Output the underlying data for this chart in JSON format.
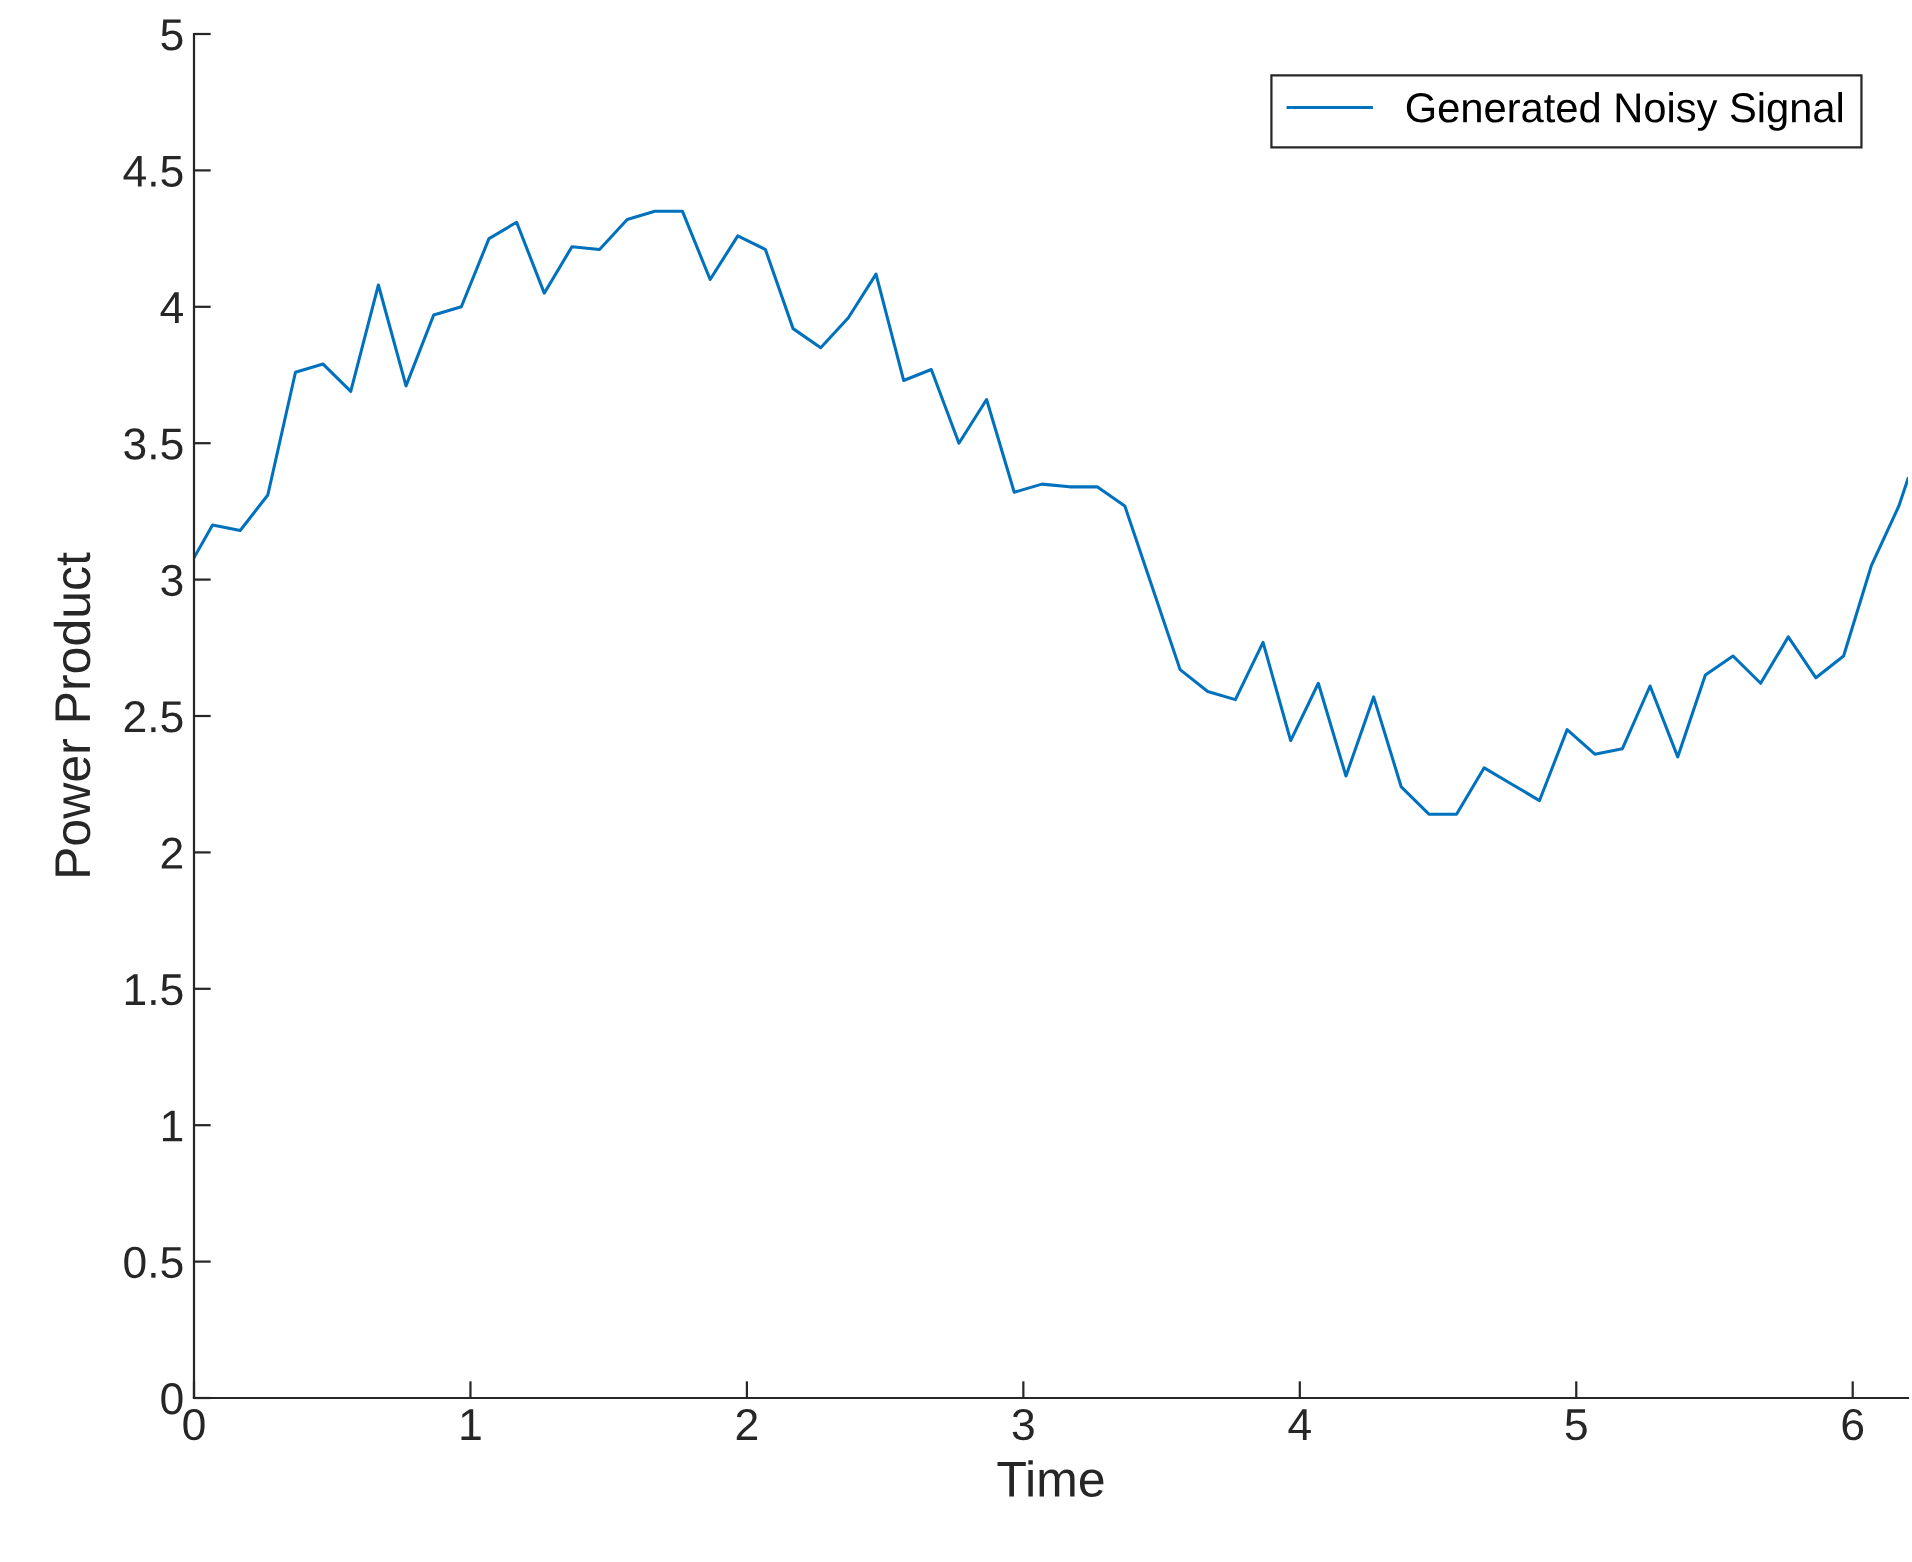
{
  "chart_data": {
    "type": "line",
    "xlabel": "Time",
    "ylabel": "Power Product",
    "x": [
      0,
      0.067,
      0.167,
      0.267,
      0.367,
      0.467,
      0.567,
      0.667,
      0.767,
      0.867,
      0.967,
      1.067,
      1.167,
      1.267,
      1.367,
      1.467,
      1.567,
      1.667,
      1.767,
      1.867,
      1.967,
      2.067,
      2.167,
      2.267,
      2.367,
      2.467,
      2.567,
      2.667,
      2.767,
      2.867,
      2.967,
      3.067,
      3.167,
      3.267,
      3.367,
      3.467,
      3.567,
      3.667,
      3.767,
      3.867,
      3.967,
      4.067,
      4.167,
      4.267,
      4.367,
      4.467,
      4.567,
      4.667,
      4.767,
      4.867,
      4.967,
      5.067,
      5.167,
      5.267,
      5.367,
      5.467,
      5.567,
      5.667,
      5.767,
      5.867,
      5.967,
      6.067,
      6.167,
      6.2
    ],
    "series": [
      {
        "name": "Generated Noisy Signal",
        "color": "#0072bd",
        "values": [
          3.08,
          3.2,
          3.18,
          3.31,
          3.76,
          3.79,
          3.69,
          4.08,
          3.71,
          3.97,
          4.0,
          4.25,
          4.31,
          4.05,
          4.22,
          4.21,
          4.32,
          4.35,
          4.35,
          4.1,
          4.26,
          4.21,
          3.92,
          3.85,
          3.96,
          4.12,
          3.73,
          3.77,
          3.5,
          3.66,
          3.32,
          3.35,
          3.34,
          3.34,
          3.27,
          2.97,
          2.67,
          2.59,
          2.56,
          2.77,
          2.41,
          2.62,
          2.28,
          2.57,
          2.24,
          2.14,
          2.14,
          2.31,
          2.25,
          2.19,
          2.45,
          2.36,
          2.38,
          2.61,
          2.35,
          2.65,
          2.72,
          2.62,
          2.79,
          2.64,
          2.72,
          3.05,
          3.27,
          3.37
        ]
      }
    ],
    "xlim": [
      0,
      6.2
    ],
    "xticks": [
      0,
      1,
      2,
      3,
      4,
      5,
      6
    ],
    "ylim": [
      0,
      5
    ],
    "yticks": [
      0,
      0.5,
      1,
      1.5,
      2,
      2.5,
      3,
      3.5,
      4,
      4.5,
      5
    ],
    "grid": false,
    "legend": "top right",
    "marker": "none",
    "line_style": "solid"
  }
}
